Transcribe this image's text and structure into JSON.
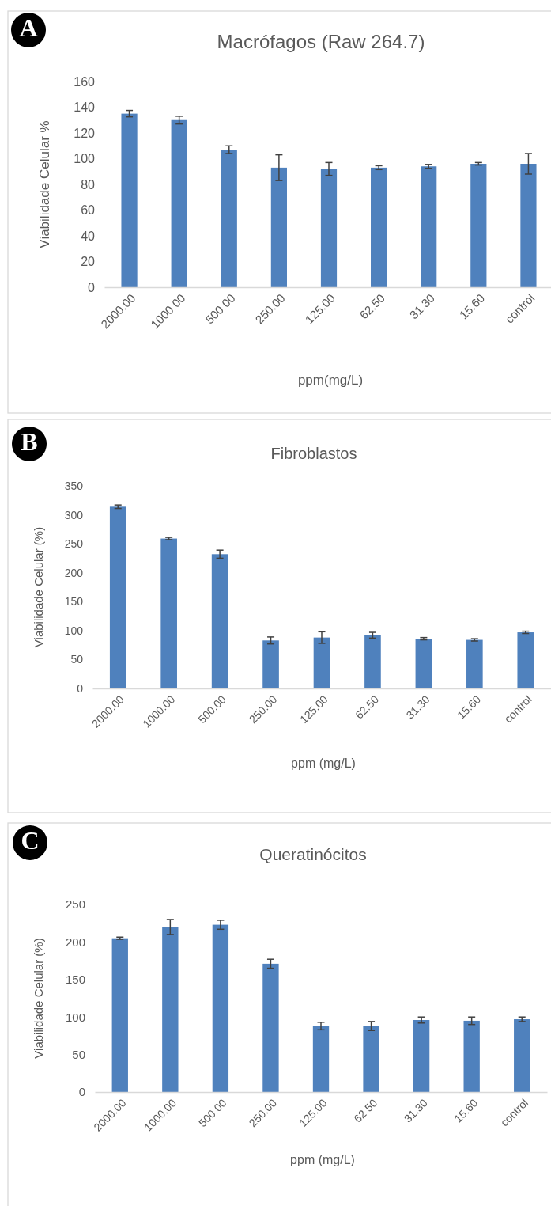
{
  "chart_data": [
    {
      "type": "bar",
      "title": "Macrófagos (Raw 264.7)",
      "xlabel": "ppm(mg/L)",
      "ylabel": "Viabilidade Celular %",
      "annotations": [
        "A"
      ],
      "categories": [
        "2000.00",
        "1000.00",
        "500.00",
        "250.00",
        "125.00",
        "62.50",
        "31.30",
        "15.60",
        "control"
      ],
      "values": [
        135,
        130,
        107,
        93,
        92,
        93,
        94,
        96,
        96
      ],
      "errors": [
        2.5,
        3,
        3,
        10,
        5,
        1.5,
        1.5,
        1,
        8
      ],
      "color": "#4f81bd",
      "ylim": [
        0,
        160
      ],
      "yticks": [
        0,
        20,
        40,
        60,
        80,
        100,
        120,
        140,
        160
      ]
    },
    {
      "type": "bar",
      "title": "Fibroblastos",
      "xlabel": "ppm (mg/L)",
      "ylabel": "Viabilidade Celular (%)",
      "annotations": [
        "B"
      ],
      "categories": [
        "2000.00",
        "1000.00",
        "500.00",
        "250.00",
        "125.00",
        "62.50",
        "31.30",
        "15.60",
        "control"
      ],
      "values": [
        314,
        259,
        232,
        83,
        88,
        92,
        86,
        84,
        97
      ],
      "errors": [
        3,
        2,
        7,
        6,
        10,
        5,
        2,
        2,
        2
      ],
      "color": "#4f81bd",
      "ylim": [
        0,
        350
      ],
      "yticks": [
        0,
        50,
        100,
        150,
        200,
        250,
        300,
        350
      ]
    },
    {
      "type": "bar",
      "title": "Queratinócitos",
      "xlabel": "ppm (mg/L)",
      "ylabel": "Viabilidade Celular (%)",
      "annotations": [
        "C"
      ],
      "categories": [
        "2000.00",
        "1000.00",
        "500.00",
        "250.00",
        "125.00",
        "62.50",
        "31.30",
        "15.60",
        "control"
      ],
      "values": [
        205,
        220,
        223,
        171,
        88,
        88,
        96,
        95,
        97
      ],
      "errors": [
        1.5,
        10,
        6,
        6,
        5,
        6,
        4,
        5,
        3
      ],
      "color": "#4f81bd",
      "ylim": [
        0,
        250
      ],
      "yticks": [
        0,
        50,
        100,
        150,
        200,
        250
      ]
    }
  ]
}
